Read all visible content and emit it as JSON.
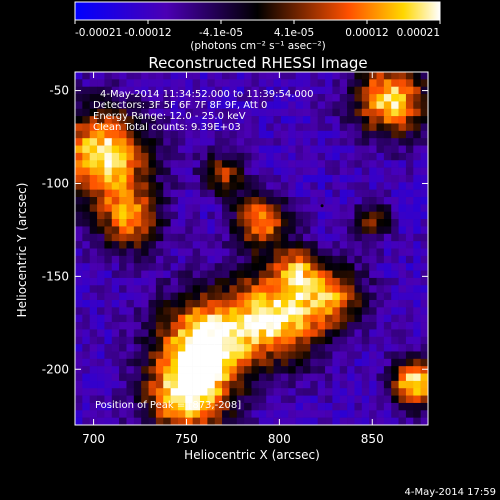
{
  "chart_data": {
    "type": "heatmap",
    "title": "Reconstructed RHESSI Image",
    "xlabel": "Heliocentric X (arcsec)",
    "ylabel": "Heliocentric Y (arcsec)",
    "xlim": [
      690,
      880
    ],
    "ylim": [
      -230,
      -40
    ],
    "x_ticks": [
      700,
      750,
      800,
      850
    ],
    "y_ticks": [
      -50,
      -100,
      -150,
      -200
    ],
    "colorbar": {
      "ticks": [
        "-0.00021",
        "-0.00012",
        "-4.1e-05",
        "4.1e-05",
        "0.00012",
        "0.00021"
      ],
      "units": "(photons cm⁻² s⁻¹ asec⁻²)",
      "min": -0.00021,
      "max": 0.00021
    },
    "annotations": [
      "4-May-2014 11:34:52.000 to 11:39:54.000",
      "Detectors: 3F 5F 6F 7F 8F 9F, Att 0",
      "Energy Range: 12.0 - 25.0 keV",
      "Clean   Total counts: 9.39E+03"
    ],
    "peak_label": "Position of Peak = [873,-208]",
    "peak": [
      873,
      -208
    ],
    "sources": [
      {
        "x": 705,
        "y": -85,
        "sigma": 18,
        "amp": 1.0
      },
      {
        "x": 720,
        "y": -120,
        "sigma": 12,
        "amp": 0.7
      },
      {
        "x": 790,
        "y": -120,
        "sigma": 10,
        "amp": 0.8
      },
      {
        "x": 770,
        "y": -95,
        "sigma": 8,
        "amp": 0.6
      },
      {
        "x": 810,
        "y": -145,
        "sigma": 8,
        "amp": 0.5
      },
      {
        "x": 860,
        "y": -55,
        "sigma": 14,
        "amp": 0.95
      },
      {
        "x": 760,
        "y": -185,
        "sigma": 18,
        "amp": 1.0
      },
      {
        "x": 800,
        "y": -170,
        "sigma": 18,
        "amp": 0.95
      },
      {
        "x": 750,
        "y": -215,
        "sigma": 16,
        "amp": 0.9
      },
      {
        "x": 830,
        "y": -160,
        "sigma": 12,
        "amp": 0.6
      },
      {
        "x": 873,
        "y": -208,
        "sigma": 9,
        "amp": 1.0
      },
      {
        "x": 850,
        "y": -120,
        "sigma": 7,
        "amp": 0.55
      }
    ]
  },
  "footer": {
    "timestamp": "4-May-2014 17:59"
  }
}
